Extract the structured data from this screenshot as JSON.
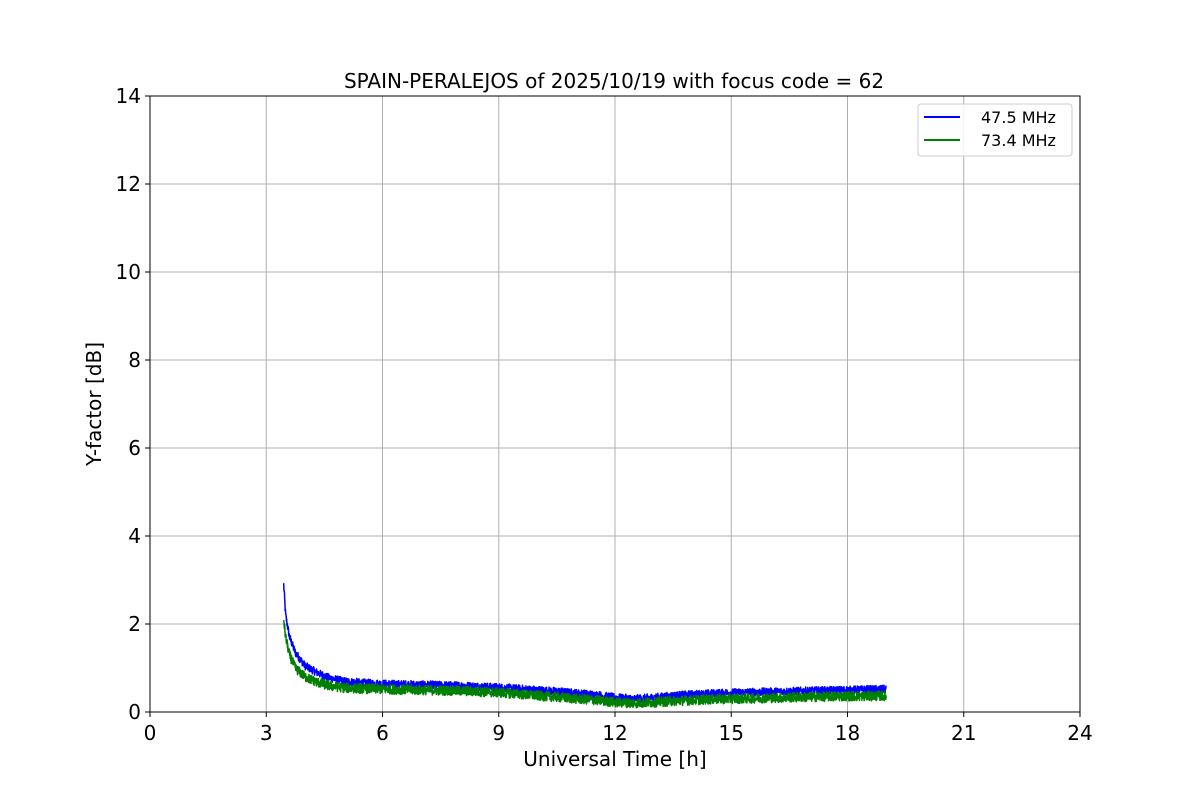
{
  "chart_data": {
    "type": "line",
    "title": "SPAIN-PERALEJOS of 2025/10/19 with focus code = 62",
    "xlabel": "Universal Time [h]",
    "ylabel": "Y-factor [dB]",
    "xlim": [
      0,
      24
    ],
    "ylim": [
      0,
      14
    ],
    "xticks": [
      0,
      3,
      6,
      9,
      12,
      15,
      18,
      21,
      24
    ],
    "yticks": [
      0,
      2,
      4,
      6,
      8,
      10,
      12,
      14
    ],
    "xtick_labels": [
      "0",
      "3",
      "6",
      "9",
      "12",
      "15",
      "18",
      "21",
      "24"
    ],
    "ytick_labels": [
      "0",
      "2",
      "4",
      "6",
      "8",
      "10",
      "12",
      "14"
    ],
    "grid": true,
    "legend_position": "top-right",
    "series": [
      {
        "name": "47.5 MHz",
        "color": "#0000ff",
        "x": [
          3.45,
          3.5,
          3.6,
          3.75,
          4.0,
          4.3,
          4.6,
          5.0,
          5.5,
          6.0,
          6.5,
          7.0,
          7.5,
          8.0,
          8.5,
          9.0,
          9.5,
          10.0,
          10.5,
          11.0,
          11.5,
          12.0,
          12.5,
          13.0,
          13.5,
          14.0,
          14.5,
          15.0,
          15.5,
          16.0,
          16.5,
          17.0,
          17.5,
          18.0,
          18.5,
          19.0
        ],
        "y": [
          2.9,
          2.2,
          1.7,
          1.35,
          1.05,
          0.9,
          0.78,
          0.7,
          0.66,
          0.64,
          0.63,
          0.62,
          0.61,
          0.6,
          0.58,
          0.56,
          0.53,
          0.5,
          0.47,
          0.43,
          0.39,
          0.33,
          0.3,
          0.33,
          0.37,
          0.4,
          0.42,
          0.44,
          0.45,
          0.46,
          0.47,
          0.48,
          0.49,
          0.5,
          0.51,
          0.52
        ],
        "noise": 0.09
      },
      {
        "name": "73.4 MHz",
        "color": "#008000",
        "x": [
          3.45,
          3.5,
          3.6,
          3.75,
          4.0,
          4.3,
          4.6,
          5.0,
          5.5,
          6.0,
          6.5,
          7.0,
          7.5,
          8.0,
          8.5,
          9.0,
          9.5,
          10.0,
          10.5,
          11.0,
          11.5,
          12.0,
          12.5,
          13.0,
          13.5,
          14.0,
          14.5,
          15.0,
          15.5,
          16.0,
          16.5,
          17.0,
          17.5,
          18.0,
          18.5,
          19.0
        ],
        "y": [
          2.1,
          1.7,
          1.3,
          1.0,
          0.8,
          0.68,
          0.6,
          0.55,
          0.53,
          0.52,
          0.51,
          0.5,
          0.49,
          0.48,
          0.46,
          0.44,
          0.41,
          0.37,
          0.34,
          0.3,
          0.27,
          0.22,
          0.2,
          0.22,
          0.25,
          0.27,
          0.29,
          0.3,
          0.31,
          0.32,
          0.33,
          0.34,
          0.35,
          0.36,
          0.36,
          0.37
        ],
        "noise": 0.11
      }
    ]
  }
}
